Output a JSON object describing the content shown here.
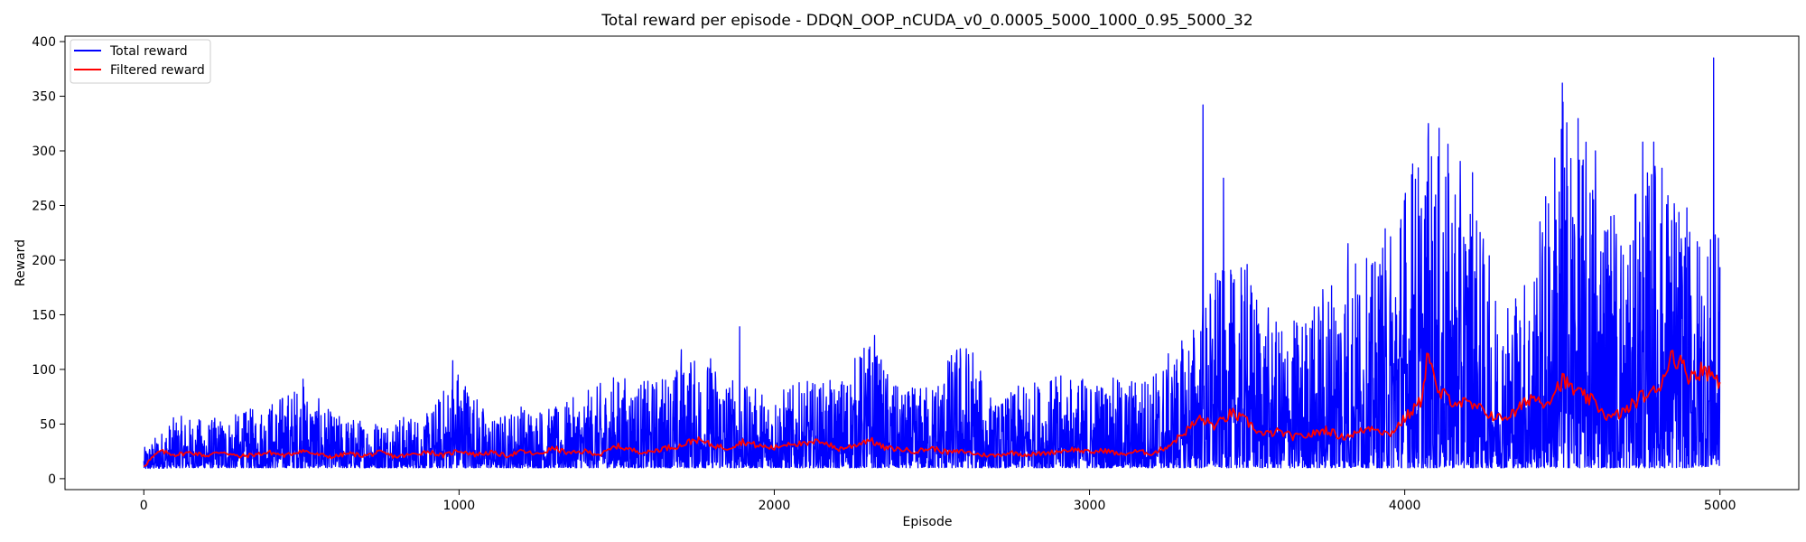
{
  "chart_data": {
    "type": "line",
    "title": "Total reward per episode - DDQN_OOP_nCUDA_v0_0.0005_5000_1000_0.95_5000_32",
    "xlabel": "Episode",
    "ylabel": "Reward",
    "xlim": [
      -250,
      5250
    ],
    "ylim": [
      -10,
      405
    ],
    "x_ticks": [
      0,
      1000,
      2000,
      3000,
      4000,
      5000
    ],
    "x_tick_labels": [
      "0",
      "1000",
      "2000",
      "3000",
      "4000",
      "5000"
    ],
    "y_ticks": [
      0,
      50,
      100,
      150,
      200,
      250,
      300,
      350,
      400
    ],
    "y_tick_labels": [
      "0",
      "50",
      "100",
      "150",
      "200",
      "250",
      "300",
      "350",
      "400"
    ],
    "grid": false,
    "legend_position": "top-left",
    "x_range": [
      0,
      5000
    ],
    "series": [
      {
        "name": "Total reward",
        "color": "#0000ff",
        "x": [
          0,
          100,
          200,
          300,
          400,
          500,
          600,
          700,
          800,
          900,
          1000,
          1100,
          1200,
          1300,
          1400,
          1500,
          1600,
          1700,
          1800,
          1900,
          2000,
          2100,
          2200,
          2300,
          2400,
          2500,
          2600,
          2700,
          2800,
          2900,
          3000,
          3100,
          3200,
          3300,
          3400,
          3500,
          3600,
          3700,
          3800,
          3900,
          4000,
          4100,
          4200,
          4300,
          4400,
          4500,
          4600,
          4700,
          4800,
          4900,
          5000
        ],
        "low": [
          9,
          10,
          10,
          10,
          10,
          10,
          10,
          10,
          10,
          10,
          10,
          10,
          10,
          10,
          10,
          10,
          10,
          10,
          10,
          10,
          10,
          10,
          10,
          10,
          10,
          10,
          10,
          10,
          10,
          10,
          10,
          10,
          10,
          10,
          10,
          10,
          10,
          10,
          10,
          10,
          10,
          10,
          10,
          10,
          10,
          10,
          10,
          10,
          10,
          10,
          12
        ],
        "high": [
          28,
          58,
          55,
          60,
          72,
          90,
          60,
          55,
          58,
          60,
          108,
          55,
          70,
          65,
          80,
          97,
          90,
          107,
          115,
          85,
          82,
          90,
          90,
          131,
          80,
          90,
          135,
          70,
          90,
          95,
          95,
          92,
          100,
          130,
          190,
          195,
          140,
          160,
          215,
          200,
          288,
          325,
          280,
          170,
          195,
          362,
          300,
          240,
          308,
          245,
          220
        ],
        "spikes": [
          {
            "x": 505,
            "y": 91
          },
          {
            "x": 980,
            "y": 108
          },
          {
            "x": 1705,
            "y": 118
          },
          {
            "x": 1735,
            "y": 106
          },
          {
            "x": 1890,
            "y": 139
          },
          {
            "x": 2318,
            "y": 131
          },
          {
            "x": 2630,
            "y": 115
          },
          {
            "x": 3360,
            "y": 342
          },
          {
            "x": 3400,
            "y": 188
          },
          {
            "x": 3425,
            "y": 275
          },
          {
            "x": 3500,
            "y": 196
          },
          {
            "x": 3820,
            "y": 215
          },
          {
            "x": 4025,
            "y": 288
          },
          {
            "x": 4075,
            "y": 325
          },
          {
            "x": 4215,
            "y": 280
          },
          {
            "x": 4500,
            "y": 362
          },
          {
            "x": 4605,
            "y": 300
          },
          {
            "x": 4755,
            "y": 308
          },
          {
            "x": 4790,
            "y": 308
          },
          {
            "x": 4980,
            "y": 385
          },
          {
            "x": 4995,
            "y": 220
          }
        ]
      },
      {
        "name": "Filtered reward",
        "color": "#ff0000",
        "x": [
          0,
          50,
          100,
          150,
          200,
          250,
          300,
          350,
          400,
          450,
          500,
          550,
          600,
          650,
          700,
          750,
          800,
          850,
          900,
          950,
          1000,
          1050,
          1100,
          1150,
          1200,
          1250,
          1300,
          1350,
          1400,
          1450,
          1500,
          1550,
          1600,
          1650,
          1700,
          1750,
          1800,
          1850,
          1900,
          1950,
          2000,
          2050,
          2100,
          2150,
          2200,
          2250,
          2300,
          2350,
          2400,
          2450,
          2500,
          2550,
          2600,
          2650,
          2700,
          2750,
          2800,
          2850,
          2900,
          2950,
          3000,
          3050,
          3100,
          3150,
          3200,
          3250,
          3300,
          3350,
          3400,
          3450,
          3500,
          3550,
          3600,
          3650,
          3700,
          3750,
          3800,
          3850,
          3900,
          3950,
          4000,
          4050,
          4075,
          4100,
          4150,
          4200,
          4250,
          4300,
          4350,
          4400,
          4450,
          4500,
          4550,
          4600,
          4650,
          4700,
          4750,
          4800,
          4850,
          4900,
          4950,
          5000
        ],
        "y": [
          12,
          25,
          22,
          24,
          21,
          25,
          20,
          22,
          24,
          21,
          26,
          22,
          20,
          23,
          21,
          24,
          20,
          22,
          25,
          21,
          26,
          22,
          24,
          21,
          25,
          22,
          28,
          23,
          25,
          22,
          30,
          26,
          24,
          28,
          30,
          36,
          31,
          28,
          34,
          30,
          28,
          33,
          31,
          35,
          27,
          30,
          36,
          28,
          27,
          25,
          28,
          24,
          25,
          22,
          21,
          24,
          22,
          23,
          25,
          27,
          24,
          26,
          22,
          25,
          23,
          30,
          42,
          55,
          48,
          60,
          52,
          40,
          43,
          38,
          40,
          45,
          38,
          42,
          48,
          40,
          55,
          70,
          118,
          80,
          72,
          68,
          62,
          55,
          60,
          75,
          70,
          90,
          78,
          70,
          55,
          62,
          75,
          80,
          115,
          95,
          100,
          90
        ]
      }
    ]
  }
}
